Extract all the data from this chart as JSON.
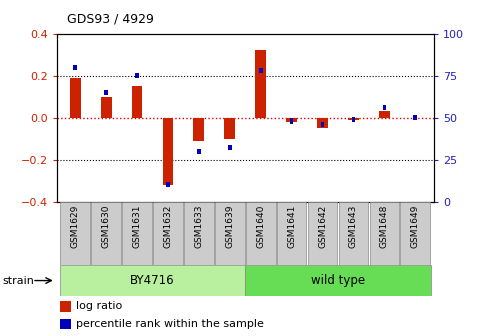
{
  "title": "GDS93 / 4929",
  "samples": [
    "GSM1629",
    "GSM1630",
    "GSM1631",
    "GSM1632",
    "GSM1633",
    "GSM1639",
    "GSM1640",
    "GSM1641",
    "GSM1642",
    "GSM1643",
    "GSM1648",
    "GSM1649"
  ],
  "log_ratio": [
    0.19,
    0.1,
    0.15,
    -0.32,
    -0.11,
    -0.1,
    0.32,
    -0.02,
    -0.05,
    -0.01,
    0.03,
    0.0
  ],
  "percentile": [
    80,
    65,
    75,
    10,
    30,
    32,
    78,
    48,
    46,
    49,
    56,
    50
  ],
  "strain_groups": [
    {
      "label": "BY4716",
      "start": 0,
      "end": 6
    },
    {
      "label": "wild type",
      "start": 6,
      "end": 12
    }
  ],
  "strain_group_color1": "#B8F0A0",
  "strain_group_color2": "#66DD55",
  "bar_color_red": "#CC2200",
  "bar_color_blue": "#0000BB",
  "ylim_left": [
    -0.4,
    0.4
  ],
  "ylim_right": [
    0,
    100
  ],
  "yticks_left": [
    -0.4,
    -0.2,
    0.0,
    0.2,
    0.4
  ],
  "yticks_right": [
    0,
    25,
    50,
    75,
    100
  ],
  "left_tick_color": "#CC2200",
  "right_tick_color": "#2222BB",
  "legend_log_ratio": "log ratio",
  "legend_percentile": "percentile rank within the sample",
  "strain_label": "strain",
  "sample_box_color": "#CCCCCC",
  "red_hline_color": "#DD0000",
  "black_hline_color": "black"
}
